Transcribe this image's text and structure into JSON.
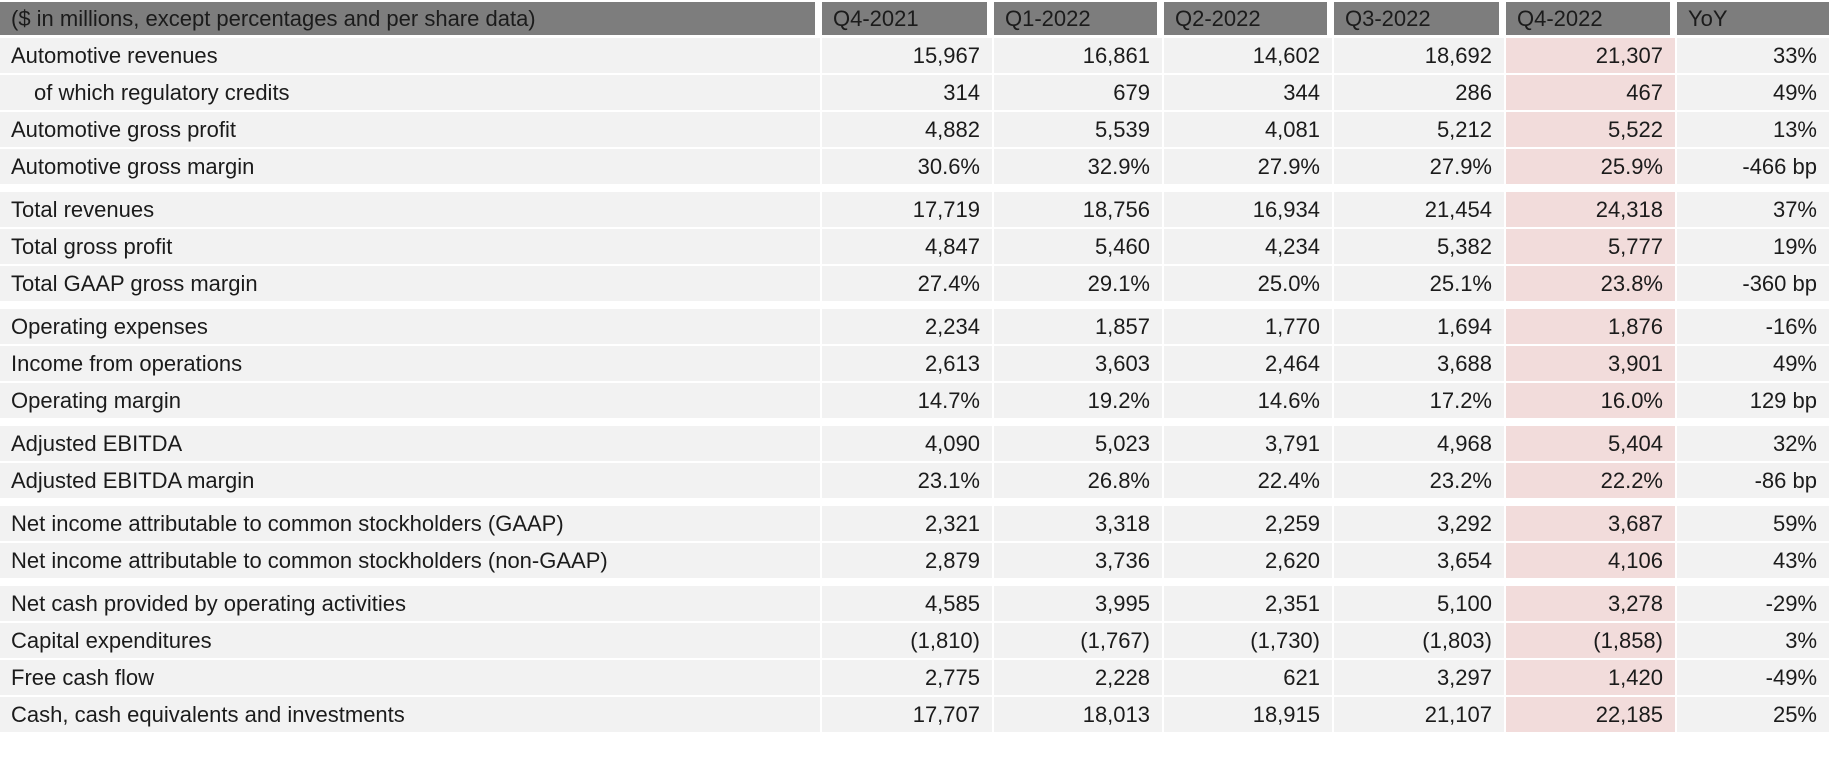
{
  "chart_data": {
    "type": "table",
    "header": {
      "label": "($ in millions, except percentages and per share data)",
      "columns": [
        "Q4-2021",
        "Q1-2022",
        "Q2-2022",
        "Q3-2022",
        "Q4-2022",
        "YoY"
      ]
    },
    "highlighted_column": "Q4-2022",
    "groups": [
      {
        "rows": [
          {
            "label": "Automotive revenues",
            "indent": false,
            "values": [
              "15,967",
              "16,861",
              "14,602",
              "18,692",
              "21,307"
            ],
            "yoy": "33%"
          },
          {
            "label": "of which regulatory credits",
            "indent": true,
            "values": [
              "314",
              "679",
              "344",
              "286",
              "467"
            ],
            "yoy": "49%"
          },
          {
            "label": "Automotive gross profit",
            "indent": false,
            "values": [
              "4,882",
              "5,539",
              "4,081",
              "5,212",
              "5,522"
            ],
            "yoy": "13%"
          },
          {
            "label": "Automotive gross margin",
            "indent": false,
            "values": [
              "30.6%",
              "32.9%",
              "27.9%",
              "27.9%",
              "25.9%"
            ],
            "yoy": "-466 bp"
          }
        ]
      },
      {
        "rows": [
          {
            "label": "Total revenues",
            "indent": false,
            "values": [
              "17,719",
              "18,756",
              "16,934",
              "21,454",
              "24,318"
            ],
            "yoy": "37%"
          },
          {
            "label": "Total gross profit",
            "indent": false,
            "values": [
              "4,847",
              "5,460",
              "4,234",
              "5,382",
              "5,777"
            ],
            "yoy": "19%"
          },
          {
            "label": "Total GAAP gross margin",
            "indent": false,
            "values": [
              "27.4%",
              "29.1%",
              "25.0%",
              "25.1%",
              "23.8%"
            ],
            "yoy": "-360 bp"
          }
        ]
      },
      {
        "rows": [
          {
            "label": "Operating expenses",
            "indent": false,
            "values": [
              "2,234",
              "1,857",
              "1,770",
              "1,694",
              "1,876"
            ],
            "yoy": "-16%"
          },
          {
            "label": "Income from operations",
            "indent": false,
            "values": [
              "2,613",
              "3,603",
              "2,464",
              "3,688",
              "3,901"
            ],
            "yoy": "49%"
          },
          {
            "label": "Operating margin",
            "indent": false,
            "values": [
              "14.7%",
              "19.2%",
              "14.6%",
              "17.2%",
              "16.0%"
            ],
            "yoy": "129 bp"
          }
        ]
      },
      {
        "rows": [
          {
            "label": "Adjusted EBITDA",
            "indent": false,
            "values": [
              "4,090",
              "5,023",
              "3,791",
              "4,968",
              "5,404"
            ],
            "yoy": "32%"
          },
          {
            "label": "Adjusted EBITDA margin",
            "indent": false,
            "values": [
              "23.1%",
              "26.8%",
              "22.4%",
              "23.2%",
              "22.2%"
            ],
            "yoy": "-86 bp"
          }
        ]
      },
      {
        "rows": [
          {
            "label": "Net income attributable to common stockholders (GAAP)",
            "indent": false,
            "values": [
              "2,321",
              "3,318",
              "2,259",
              "3,292",
              "3,687"
            ],
            "yoy": "59%"
          },
          {
            "label": "Net income attributable to common stockholders (non-GAAP)",
            "indent": false,
            "values": [
              "2,879",
              "3,736",
              "2,620",
              "3,654",
              "4,106"
            ],
            "yoy": "43%"
          }
        ]
      },
      {
        "rows": [
          {
            "label": "Net cash provided by operating activities",
            "indent": false,
            "values": [
              "4,585",
              "3,995",
              "2,351",
              "5,100",
              "3,278"
            ],
            "yoy": "-29%"
          },
          {
            "label": "Capital expenditures",
            "indent": false,
            "values": [
              "(1,810)",
              "(1,767)",
              "(1,730)",
              "(1,803)",
              "(1,858)"
            ],
            "yoy": "3%"
          },
          {
            "label": "Free cash flow",
            "indent": false,
            "values": [
              "2,775",
              "2,228",
              "621",
              "3,297",
              "1,420"
            ],
            "yoy": "-49%"
          },
          {
            "label": "Cash, cash equivalents and investments",
            "indent": false,
            "values": [
              "17,707",
              "18,013",
              "18,915",
              "21,107",
              "22,185"
            ],
            "yoy": "25%"
          }
        ]
      }
    ],
    "colors": {
      "header_bg": "#7d7d7d",
      "header_text": "#ffffff",
      "row_bg": "#f2f2f2",
      "highlight_bg": "#f2dcdb",
      "text": "#1b1b1b",
      "separator": "#ffffff"
    }
  }
}
